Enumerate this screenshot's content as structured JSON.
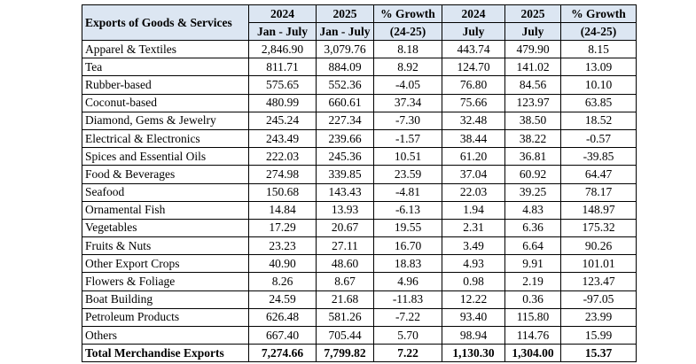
{
  "table": {
    "first_header": "Exports of Goods & Services",
    "columns": [
      {
        "top": "2024",
        "bottom": "Jan - July"
      },
      {
        "top": "2025",
        "bottom": "Jan - July"
      },
      {
        "top": "% Growth",
        "bottom": "(24-25)"
      },
      {
        "top": "2024",
        "bottom": "July"
      },
      {
        "top": "2025",
        "bottom": "July"
      },
      {
        "top": "% Growth",
        "bottom": "(24-25)"
      }
    ],
    "rows": [
      [
        "Apparel & Textiles",
        "2,846.90",
        "3,079.76",
        "8.18",
        "443.74",
        "479.90",
        "8.15"
      ],
      [
        "Tea",
        "811.71",
        "884.09",
        "8.92",
        "124.70",
        "141.02",
        "13.09"
      ],
      [
        "Rubber-based",
        "575.65",
        "552.36",
        "-4.05",
        "76.80",
        "84.56",
        "10.10"
      ],
      [
        "Coconut-based",
        "480.99",
        "660.61",
        "37.34",
        "75.66",
        "123.97",
        "63.85"
      ],
      [
        "Diamond, Gems &  Jewelry",
        "245.24",
        "227.34",
        "-7.30",
        "32.48",
        "38.50",
        "18.52"
      ],
      [
        "Electrical & Electronics",
        "243.49",
        "239.66",
        "-1.57",
        "38.44",
        "38.22",
        "-0.57"
      ],
      [
        "Spices and Essential Oils",
        "222.03",
        "245.36",
        "10.51",
        "61.20",
        "36.81",
        "-39.85"
      ],
      [
        "Food & Beverages",
        "274.98",
        "339.85",
        "23.59",
        "37.04",
        "60.92",
        "64.47"
      ],
      [
        "Seafood",
        "150.68",
        "143.43",
        "-4.81",
        "22.03",
        "39.25",
        "78.17"
      ],
      [
        "Ornamental Fish",
        "14.84",
        "13.93",
        "-6.13",
        "1.94",
        "4.83",
        "148.97"
      ],
      [
        "Vegetables",
        "17.29",
        "20.67",
        "19.55",
        "2.31",
        "6.36",
        "175.32"
      ],
      [
        "Fruits & Nuts",
        "23.23",
        "27.11",
        "16.70",
        "3.49",
        "6.64",
        "90.26"
      ],
      [
        "Other Export Crops",
        "40.90",
        "48.60",
        "18.83",
        "4.93",
        "9.91",
        "101.01"
      ],
      [
        "Flowers & Foliage",
        "8.26",
        "8.67",
        "4.96",
        "0.98",
        "2.19",
        "123.47"
      ],
      [
        "Boat Building",
        "24.59",
        "21.68",
        "-11.83",
        "12.22",
        "0.36",
        "-97.05"
      ],
      [
        "Petroleum Products",
        "626.48",
        "581.26",
        "-7.22",
        "93.40",
        "115.80",
        "23.99"
      ],
      [
        "Others",
        "667.40",
        "705.44",
        "5.70",
        "98.94",
        "114.76",
        "15.99"
      ]
    ],
    "total": [
      "Total Merchandise Exports",
      "7,274.66",
      "7,799.82",
      "7.22",
      "1,130.30",
      "1,304.00",
      "15.37"
    ]
  }
}
